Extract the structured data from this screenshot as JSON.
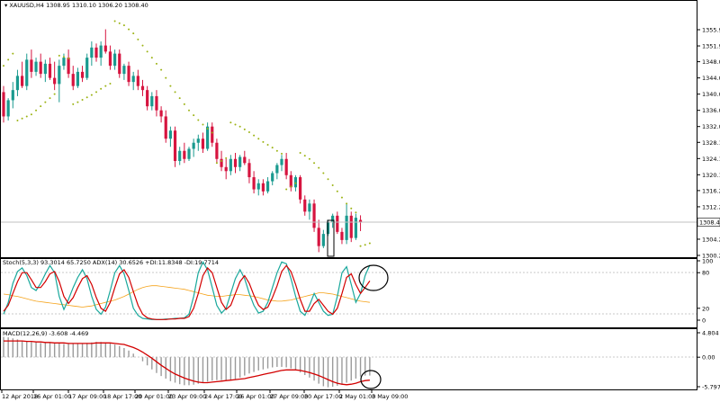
{
  "main_panel": {
    "title": "XAUUSD,H4",
    "ohlc": "1308.95 1310.10 1306.20 1308.40",
    "current_price": "1308.40",
    "current_price_value": 1308.4,
    "y_range": [
      1300.2,
      1359.9
    ],
    "price_ticks": [
      "1355.90",
      "1351.90",
      "1348.00",
      "1344.00",
      "1340.00",
      "1336.00",
      "1332.00",
      "1328.10",
      "1324.10",
      "1320.10",
      "1316.20",
      "1312.20",
      "1308.20",
      "1304.20",
      "1300.20"
    ],
    "colors": {
      "bull": "#1a9a8f",
      "bear": "#d6143f",
      "sar": "#9cb314",
      "price_line": "#c0c0c0"
    }
  },
  "stoch_panel": {
    "label": "Stoch(5,3,3) 93.3014 65.7250  ADX(14) 30.6526 +DI:11.8348 -DI:19.7714",
    "ticks": [
      "100",
      "80",
      "20",
      "0"
    ],
    "colors": {
      "main": "#19a89c",
      "signal": "#d30000",
      "adx": "#f5a31a"
    }
  },
  "macd_panel": {
    "label": "MACD(12,26,9) -3.608 -4.469",
    "ticks": [
      "4.804",
      "0.00",
      "-5.797"
    ],
    "colors": {
      "hist": "#9a9a9a",
      "signal": "#d30000"
    }
  },
  "time_axis": {
    "labels": [
      "12 Apr 2018",
      "16 Apr 01:00",
      "17 Apr 09:00",
      "18 Apr 17:00",
      "20 Apr 01:00",
      "23 Apr 09:00",
      "24 Apr 17:00",
      "26 Apr 01:00",
      "27 Apr 09:00",
      "30 Apr 17:00",
      "2 May 01:00",
      "3 May 09:00"
    ]
  },
  "chart_data": {
    "type": "candlestick",
    "series_note": "",
    "candles": [
      {
        "o": 1340.5,
        "h": 1342.0,
        "l": 1333.0,
        "c": 1334.5
      },
      {
        "o": 1334.5,
        "h": 1339.0,
        "l": 1333.5,
        "c": 1338.5
      },
      {
        "o": 1338.5,
        "h": 1343.0,
        "l": 1336.5,
        "c": 1341.0
      },
      {
        "o": 1341.0,
        "h": 1346.0,
        "l": 1339.5,
        "c": 1344.5
      },
      {
        "o": 1344.5,
        "h": 1348.0,
        "l": 1341.5,
        "c": 1342.0
      },
      {
        "o": 1342.0,
        "h": 1350.0,
        "l": 1341.0,
        "c": 1348.5
      },
      {
        "o": 1348.5,
        "h": 1351.0,
        "l": 1344.0,
        "c": 1345.5
      },
      {
        "o": 1345.5,
        "h": 1349.0,
        "l": 1344.5,
        "c": 1348.0
      },
      {
        "o": 1348.0,
        "h": 1350.0,
        "l": 1344.0,
        "c": 1345.0
      },
      {
        "o": 1345.0,
        "h": 1348.5,
        "l": 1343.0,
        "c": 1347.5
      },
      {
        "o": 1347.5,
        "h": 1349.0,
        "l": 1343.5,
        "c": 1344.0
      },
      {
        "o": 1344.0,
        "h": 1348.0,
        "l": 1341.0,
        "c": 1342.5
      },
      {
        "o": 1342.5,
        "h": 1348.5,
        "l": 1338.0,
        "c": 1347.0
      },
      {
        "o": 1347.0,
        "h": 1350.0,
        "l": 1346.0,
        "c": 1349.0
      },
      {
        "o": 1349.0,
        "h": 1351.0,
        "l": 1344.0,
        "c": 1345.0
      },
      {
        "o": 1345.0,
        "h": 1347.0,
        "l": 1341.0,
        "c": 1342.0
      },
      {
        "o": 1342.0,
        "h": 1346.5,
        "l": 1341.5,
        "c": 1345.5
      },
      {
        "o": 1345.5,
        "h": 1347.0,
        "l": 1343.0,
        "c": 1344.0
      },
      {
        "o": 1344.0,
        "h": 1350.0,
        "l": 1343.5,
        "c": 1349.0
      },
      {
        "o": 1349.0,
        "h": 1353.0,
        "l": 1347.0,
        "c": 1351.5
      },
      {
        "o": 1351.5,
        "h": 1352.5,
        "l": 1348.0,
        "c": 1349.0
      },
      {
        "o": 1349.0,
        "h": 1353.0,
        "l": 1347.0,
        "c": 1352.0
      },
      {
        "o": 1352.0,
        "h": 1356.0,
        "l": 1350.0,
        "c": 1350.5
      },
      {
        "o": 1350.5,
        "h": 1352.0,
        "l": 1346.0,
        "c": 1347.0
      },
      {
        "o": 1347.0,
        "h": 1351.0,
        "l": 1346.0,
        "c": 1350.0
      },
      {
        "o": 1350.0,
        "h": 1351.0,
        "l": 1344.0,
        "c": 1345.0
      },
      {
        "o": 1345.0,
        "h": 1347.5,
        "l": 1343.5,
        "c": 1347.0
      },
      {
        "o": 1347.0,
        "h": 1348.0,
        "l": 1342.0,
        "c": 1343.0
      },
      {
        "o": 1343.0,
        "h": 1345.5,
        "l": 1341.0,
        "c": 1344.5
      },
      {
        "o": 1344.5,
        "h": 1346.0,
        "l": 1341.0,
        "c": 1342.0
      },
      {
        "o": 1342.0,
        "h": 1343.5,
        "l": 1339.5,
        "c": 1341.0
      },
      {
        "o": 1341.0,
        "h": 1342.0,
        "l": 1336.0,
        "c": 1337.0
      },
      {
        "o": 1337.0,
        "h": 1340.5,
        "l": 1336.0,
        "c": 1339.5
      },
      {
        "o": 1339.5,
        "h": 1341.0,
        "l": 1334.5,
        "c": 1336.0
      },
      {
        "o": 1336.0,
        "h": 1337.0,
        "l": 1333.0,
        "c": 1334.5
      },
      {
        "o": 1334.5,
        "h": 1336.0,
        "l": 1328.0,
        "c": 1329.0
      },
      {
        "o": 1329.0,
        "h": 1332.0,
        "l": 1327.0,
        "c": 1331.0
      },
      {
        "o": 1331.0,
        "h": 1332.0,
        "l": 1322.0,
        "c": 1323.5
      },
      {
        "o": 1323.5,
        "h": 1327.0,
        "l": 1322.5,
        "c": 1326.0
      },
      {
        "o": 1326.0,
        "h": 1328.0,
        "l": 1323.0,
        "c": 1324.0
      },
      {
        "o": 1324.0,
        "h": 1327.0,
        "l": 1323.5,
        "c": 1326.5
      },
      {
        "o": 1326.5,
        "h": 1329.0,
        "l": 1324.5,
        "c": 1328.0
      },
      {
        "o": 1328.0,
        "h": 1330.0,
        "l": 1326.0,
        "c": 1329.0
      },
      {
        "o": 1329.0,
        "h": 1330.5,
        "l": 1325.5,
        "c": 1326.5
      },
      {
        "o": 1326.5,
        "h": 1333.0,
        "l": 1326.0,
        "c": 1332.0
      },
      {
        "o": 1332.0,
        "h": 1333.0,
        "l": 1327.0,
        "c": 1328.0
      },
      {
        "o": 1328.0,
        "h": 1329.0,
        "l": 1323.0,
        "c": 1324.0
      },
      {
        "o": 1324.0,
        "h": 1326.0,
        "l": 1321.0,
        "c": 1322.0
      },
      {
        "o": 1322.0,
        "h": 1324.0,
        "l": 1319.0,
        "c": 1321.0
      },
      {
        "o": 1321.0,
        "h": 1325.0,
        "l": 1320.0,
        "c": 1324.0
      },
      {
        "o": 1324.0,
        "h": 1325.5,
        "l": 1320.5,
        "c": 1322.0
      },
      {
        "o": 1322.0,
        "h": 1325.0,
        "l": 1321.0,
        "c": 1324.5
      },
      {
        "o": 1324.5,
        "h": 1326.0,
        "l": 1322.5,
        "c": 1323.0
      },
      {
        "o": 1323.0,
        "h": 1324.0,
        "l": 1318.0,
        "c": 1319.5
      },
      {
        "o": 1319.5,
        "h": 1321.0,
        "l": 1315.5,
        "c": 1316.5
      },
      {
        "o": 1316.5,
        "h": 1319.0,
        "l": 1315.0,
        "c": 1318.0
      },
      {
        "o": 1318.0,
        "h": 1319.0,
        "l": 1315.0,
        "c": 1316.0
      },
      {
        "o": 1316.0,
        "h": 1319.5,
        "l": 1315.5,
        "c": 1318.5
      },
      {
        "o": 1318.5,
        "h": 1321.0,
        "l": 1317.5,
        "c": 1320.5
      },
      {
        "o": 1320.5,
        "h": 1323.0,
        "l": 1319.0,
        "c": 1322.5
      },
      {
        "o": 1322.5,
        "h": 1325.0,
        "l": 1321.0,
        "c": 1324.0
      },
      {
        "o": 1324.0,
        "h": 1325.5,
        "l": 1319.0,
        "c": 1320.0
      },
      {
        "o": 1320.0,
        "h": 1321.0,
        "l": 1316.0,
        "c": 1317.0
      },
      {
        "o": 1317.0,
        "h": 1320.0,
        "l": 1316.0,
        "c": 1319.5
      },
      {
        "o": 1319.5,
        "h": 1320.0,
        "l": 1313.0,
        "c": 1314.0
      },
      {
        "o": 1314.0,
        "h": 1315.0,
        "l": 1310.0,
        "c": 1311.0
      },
      {
        "o": 1311.0,
        "h": 1314.0,
        "l": 1309.0,
        "c": 1313.0
      },
      {
        "o": 1313.0,
        "h": 1314.0,
        "l": 1306.0,
        "c": 1307.0
      },
      {
        "o": 1307.0,
        "h": 1309.0,
        "l": 1301.0,
        "c": 1302.5
      },
      {
        "o": 1302.5,
        "h": 1306.5,
        "l": 1302.0,
        "c": 1305.5
      },
      {
        "o": 1305.5,
        "h": 1309.0,
        "l": 1305.0,
        "c": 1308.5
      },
      {
        "o": 1308.5,
        "h": 1310.5,
        "l": 1307.0,
        "c": 1310.0
      },
      {
        "o": 1310.0,
        "h": 1311.0,
        "l": 1305.5,
        "c": 1306.0
      },
      {
        "o": 1306.0,
        "h": 1307.0,
        "l": 1303.0,
        "c": 1304.0
      },
      {
        "o": 1304.0,
        "h": 1313.0,
        "l": 1303.0,
        "c": 1310.0
      },
      {
        "o": 1310.0,
        "h": 1311.0,
        "l": 1303.5,
        "c": 1304.5
      },
      {
        "o": 1304.5,
        "h": 1310.5,
        "l": 1304.0,
        "c": 1309.5
      },
      {
        "o": 1308.95,
        "h": 1310.1,
        "l": 1306.2,
        "c": 1308.4
      }
    ],
    "parabolic_sar": [
      1347,
      1348.5,
      1350,
      1333.5,
      1334,
      1334.5,
      1335,
      1336,
      1337,
      1338,
      1339,
      1340,
      1349.5,
      1349.2,
      1348.8,
      1337.5,
      1338,
      1338.6,
      1339.2,
      1339.8,
      1340.5,
      1341.3,
      1342,
      1342.6,
      1358,
      1357.5,
      1357,
      1356,
      1355,
      1353.5,
      1352,
      1350.5,
      1349,
      1347.5,
      1346,
      1344,
      1342,
      1340.5,
      1339,
      1337.5,
      1336,
      1334.8,
      1333.6,
      1332.5,
      1331.5,
      1330.5,
      1323,
      1323.5,
      1324.2,
      1333,
      1332.5,
      1332,
      1331.3,
      1330.6,
      1329.8,
      1329,
      1328.2,
      1327.5,
      1326.8,
      1326,
      1325.3,
      1316.5,
      1317.2,
      1318,
      1325.5,
      1324.8,
      1324,
      1323,
      1321.8,
      1320.5,
      1319,
      1317.5,
      1316,
      1314.5,
      1313,
      1311.8,
      1310.8,
      1302.5,
      1302.8,
      1303.2
    ],
    "stoch_main": [
      10,
      30,
      62,
      82,
      88,
      75,
      55,
      50,
      62,
      78,
      92,
      80,
      40,
      18,
      35,
      55,
      72,
      85,
      70,
      40,
      18,
      10,
      22,
      50,
      80,
      92,
      78,
      50,
      20,
      8,
      3,
      2,
      1,
      1,
      1,
      2,
      2,
      3,
      3,
      4,
      10,
      40,
      80,
      98,
      85,
      55,
      25,
      12,
      20,
      45,
      70,
      85,
      70,
      45,
      25,
      12,
      15,
      30,
      55,
      80,
      98,
      95,
      70,
      40,
      15,
      8,
      25,
      45,
      30,
      15,
      8,
      10,
      40,
      80,
      90,
      60,
      30,
      45,
      75,
      93
    ],
    "stoch_signal": [
      15,
      25,
      45,
      65,
      80,
      80,
      68,
      55,
      55,
      65,
      78,
      82,
      65,
      40,
      28,
      38,
      55,
      70,
      75,
      60,
      38,
      20,
      15,
      30,
      55,
      78,
      85,
      72,
      48,
      25,
      10,
      4,
      2,
      1,
      1,
      1,
      2,
      2,
      3,
      3,
      6,
      20,
      45,
      75,
      88,
      80,
      55,
      30,
      18,
      25,
      45,
      65,
      75,
      62,
      42,
      25,
      18,
      22,
      38,
      58,
      82,
      92,
      82,
      60,
      35,
      15,
      15,
      28,
      35,
      25,
      15,
      10,
      20,
      45,
      72,
      78,
      60,
      45,
      55,
      66
    ],
    "adx": [
      44,
      43,
      41,
      40,
      38,
      36,
      34,
      32,
      31,
      30,
      29,
      28,
      27,
      26,
      25,
      24,
      23,
      22,
      23,
      24,
      26,
      28,
      30,
      32,
      34,
      37,
      40,
      44,
      48,
      52,
      55,
      57,
      58,
      58,
      57,
      56,
      55,
      54,
      53,
      52,
      50,
      48,
      46,
      44,
      42,
      41,
      40,
      40,
      41,
      42,
      43,
      43,
      42,
      41,
      40,
      38,
      36,
      34,
      33,
      32,
      32,
      33,
      34,
      36,
      38,
      40,
      42,
      44,
      46,
      46,
      45,
      44,
      42,
      40,
      38,
      36,
      34,
      32,
      31,
      30
    ],
    "macd_hist": [
      4.0,
      3.9,
      3.7,
      3.5,
      3.3,
      3.2,
      3.0,
      2.9,
      2.8,
      2.8,
      2.8,
      2.8,
      2.7,
      2.6,
      2.6,
      2.6,
      2.6,
      2.7,
      2.8,
      2.9,
      3.0,
      3.0,
      2.9,
      2.7,
      2.5,
      2.2,
      1.8,
      1.3,
      0.7,
      0.0,
      -0.8,
      -1.6,
      -2.4,
      -3.1,
      -3.7,
      -4.2,
      -4.7,
      -5.0,
      -5.3,
      -5.5,
      -5.5,
      -5.4,
      -5.2,
      -5.0,
      -4.8,
      -4.6,
      -4.5,
      -4.5,
      -4.5,
      -4.5,
      -4.3,
      -4.0,
      -3.6,
      -3.2,
      -2.9,
      -2.6,
      -2.4,
      -2.2,
      -2.0,
      -1.9,
      -1.9,
      -2.0,
      -2.2,
      -2.6,
      -3.0,
      -3.5,
      -4.0,
      -4.6,
      -5.2,
      -5.7,
      -5.9,
      -5.8,
      -5.6,
      -5.4,
      -5.0,
      -4.6,
      -4.2,
      -3.8,
      -3.6,
      -3.6
    ],
    "macd_signal": [
      3.2,
      3.2,
      3.2,
      3.2,
      3.2,
      3.1,
      3.1,
      3.0,
      3.0,
      2.9,
      2.9,
      2.8,
      2.8,
      2.8,
      2.7,
      2.7,
      2.7,
      2.7,
      2.7,
      2.7,
      2.8,
      2.8,
      2.8,
      2.8,
      2.7,
      2.6,
      2.5,
      2.2,
      1.9,
      1.5,
      1.0,
      0.4,
      -0.2,
      -0.9,
      -1.6,
      -2.2,
      -2.8,
      -3.3,
      -3.7,
      -4.1,
      -4.4,
      -4.7,
      -4.9,
      -5.0,
      -5.0,
      -4.9,
      -4.8,
      -4.7,
      -4.6,
      -4.5,
      -4.4,
      -4.3,
      -4.2,
      -4.0,
      -3.8,
      -3.6,
      -3.4,
      -3.2,
      -3.0,
      -2.8,
      -2.6,
      -2.5,
      -2.5,
      -2.5,
      -2.6,
      -2.8,
      -3.0,
      -3.3,
      -3.6,
      -4.0,
      -4.4,
      -4.8,
      -5.1,
      -5.3,
      -5.4,
      -5.3,
      -5.1,
      -4.8,
      -4.6,
      -4.5
    ]
  }
}
